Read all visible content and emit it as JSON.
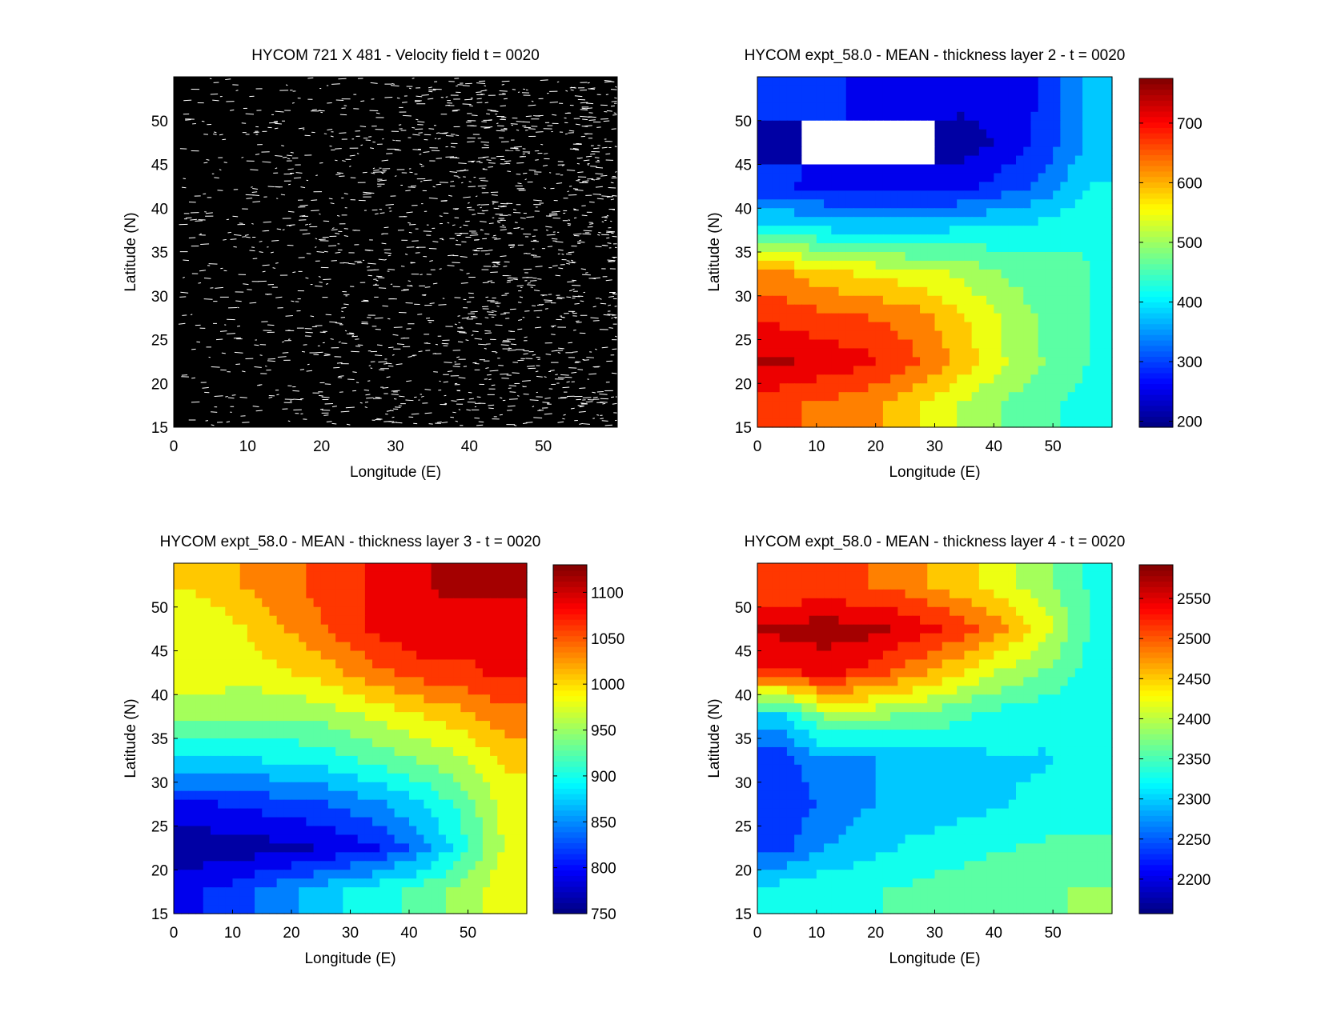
{
  "chart_data": [
    {
      "type": "quiver",
      "title": "HYCOM 721 X 481 - Velocity field  t = 0020",
      "xlabel": "Longitude (E)",
      "ylabel": "Latitude (N)",
      "xlim": [
        0,
        60
      ],
      "ylim": [
        15,
        55
      ],
      "xticks": [
        "0",
        "10",
        "20",
        "30",
        "40",
        "50"
      ],
      "yticks": [
        "15",
        "20",
        "25",
        "30",
        "35",
        "40",
        "45",
        "50"
      ]
    },
    {
      "type": "heatmap",
      "title": "HYCOM expt_58.0 - MEAN - thickness layer 2 - t = 0020",
      "xlabel": "Longitude (E)",
      "ylabel": "Latitude (N)",
      "xlim": [
        0,
        60
      ],
      "ylim": [
        15,
        55
      ],
      "xticks": [
        "0",
        "10",
        "20",
        "30",
        "40",
        "50"
      ],
      "yticks": [
        "15",
        "20",
        "25",
        "30",
        "35",
        "40",
        "45",
        "50"
      ],
      "colorbar": {
        "range": [
          190,
          775
        ],
        "ticks": [
          "200",
          "300",
          "400",
          "500",
          "600",
          "700"
        ],
        "colormap": "jet"
      },
      "lat": [
        52.5,
        47.5,
        42.5,
        37.5,
        32.5,
        27.5,
        22.5,
        17.5
      ],
      "lon": [
        3.75,
        11.25,
        18.75,
        26.25,
        33.75,
        41.25,
        48.75,
        56.25
      ],
      "values": [
        [
          300,
          280,
          270,
          260,
          250,
          250,
          280,
          380
        ],
        [
          230,
          null,
          null,
          null,
          200,
          240,
          290,
          370
        ],
        [
          280,
          260,
          250,
          250,
          260,
          290,
          330,
          400
        ],
        [
          420,
          400,
          390,
          390,
          400,
          410,
          420,
          440
        ],
        [
          620,
          580,
          560,
          540,
          520,
          480,
          460,
          440
        ],
        [
          680,
          660,
          650,
          630,
          580,
          520,
          470,
          440
        ],
        [
          740,
          720,
          700,
          660,
          600,
          530,
          480,
          440
        ],
        [
          660,
          640,
          620,
          580,
          520,
          480,
          450,
          420
        ]
      ]
    },
    {
      "type": "heatmap",
      "title": "HYCOM expt_58.0 - MEAN - thickness layer 3 - t = 0020",
      "xlabel": "Longitude (E)",
      "ylabel": "Latitude (N)",
      "xlim": [
        0,
        60
      ],
      "ylim": [
        15,
        55
      ],
      "xticks": [
        "0",
        "10",
        "20",
        "30",
        "40",
        "50"
      ],
      "yticks": [
        "15",
        "20",
        "25",
        "30",
        "35",
        "40",
        "45",
        "50"
      ],
      "colorbar": {
        "range": [
          750,
          1130
        ],
        "ticks": [
          "750",
          "800",
          "850",
          "900",
          "950",
          "1000",
          "1050",
          "1100"
        ],
        "colormap": "jet"
      },
      "lat": [
        52.5,
        47.5,
        42.5,
        37.5,
        32.5,
        27.5,
        22.5,
        17.5
      ],
      "lon": [
        3.75,
        11.25,
        18.75,
        26.25,
        33.75,
        41.25,
        48.75,
        56.25
      ],
      "values": [
        [
          1000,
          1020,
          1040,
          1060,
          1080,
          1100,
          1110,
          1110
        ],
        [
          970,
          990,
          1020,
          1050,
          1080,
          1100,
          1090,
          1080
        ],
        [
          990,
          980,
          990,
          1010,
          1040,
          1060,
          1070,
          1080
        ],
        [
          950,
          940,
          940,
          950,
          970,
          990,
          1010,
          1040
        ],
        [
          880,
          880,
          890,
          900,
          920,
          940,
          960,
          1000
        ],
        [
          800,
          810,
          820,
          830,
          850,
          880,
          920,
          980
        ],
        [
          760,
          760,
          770,
          780,
          800,
          840,
          900,
          970
        ],
        [
          800,
          820,
          850,
          880,
          900,
          920,
          950,
          990
        ]
      ]
    },
    {
      "type": "heatmap",
      "title": "HYCOM expt_58.0 - MEAN - thickness layer 4 - t = 0020",
      "xlabel": "Longitude (E)",
      "ylabel": "Latitude (N)",
      "xlim": [
        0,
        60
      ],
      "ylim": [
        15,
        55
      ],
      "xticks": [
        "0",
        "10",
        "20",
        "30",
        "40",
        "50"
      ],
      "yticks": [
        "15",
        "20",
        "25",
        "30",
        "35",
        "40",
        "45",
        "50"
      ],
      "colorbar": {
        "range": [
          2157,
          2592
        ],
        "ticks": [
          "2200",
          "2250",
          "2300",
          "2350",
          "2400",
          "2450",
          "2500",
          "2550"
        ],
        "colormap": "jet"
      },
      "lat": [
        52.5,
        47.5,
        42.5,
        37.5,
        32.5,
        27.5,
        22.5,
        17.5
      ],
      "lon": [
        3.75,
        11.25,
        18.75,
        26.25,
        33.75,
        41.25,
        48.75,
        56.25
      ],
      "values": [
        [
          2500,
          2500,
          2500,
          2480,
          2450,
          2420,
          2380,
          2340
        ],
        [
          2570,
          2580,
          2570,
          2550,
          2520,
          2480,
          2420,
          2340
        ],
        [
          2520,
          2540,
          2520,
          2480,
          2440,
          2400,
          2370,
          2330
        ],
        [
          2300,
          2380,
          2380,
          2370,
          2350,
          2330,
          2320,
          2320
        ],
        [
          2230,
          2280,
          2280,
          2290,
          2300,
          2310,
          2310,
          2320
        ],
        [
          2220,
          2260,
          2280,
          2290,
          2300,
          2310,
          2320,
          2330
        ],
        [
          2240,
          2280,
          2300,
          2320,
          2330,
          2340,
          2350,
          2350
        ],
        [
          2330,
          2340,
          2340,
          2350,
          2360,
          2370,
          2370,
          2380
        ]
      ]
    }
  ]
}
